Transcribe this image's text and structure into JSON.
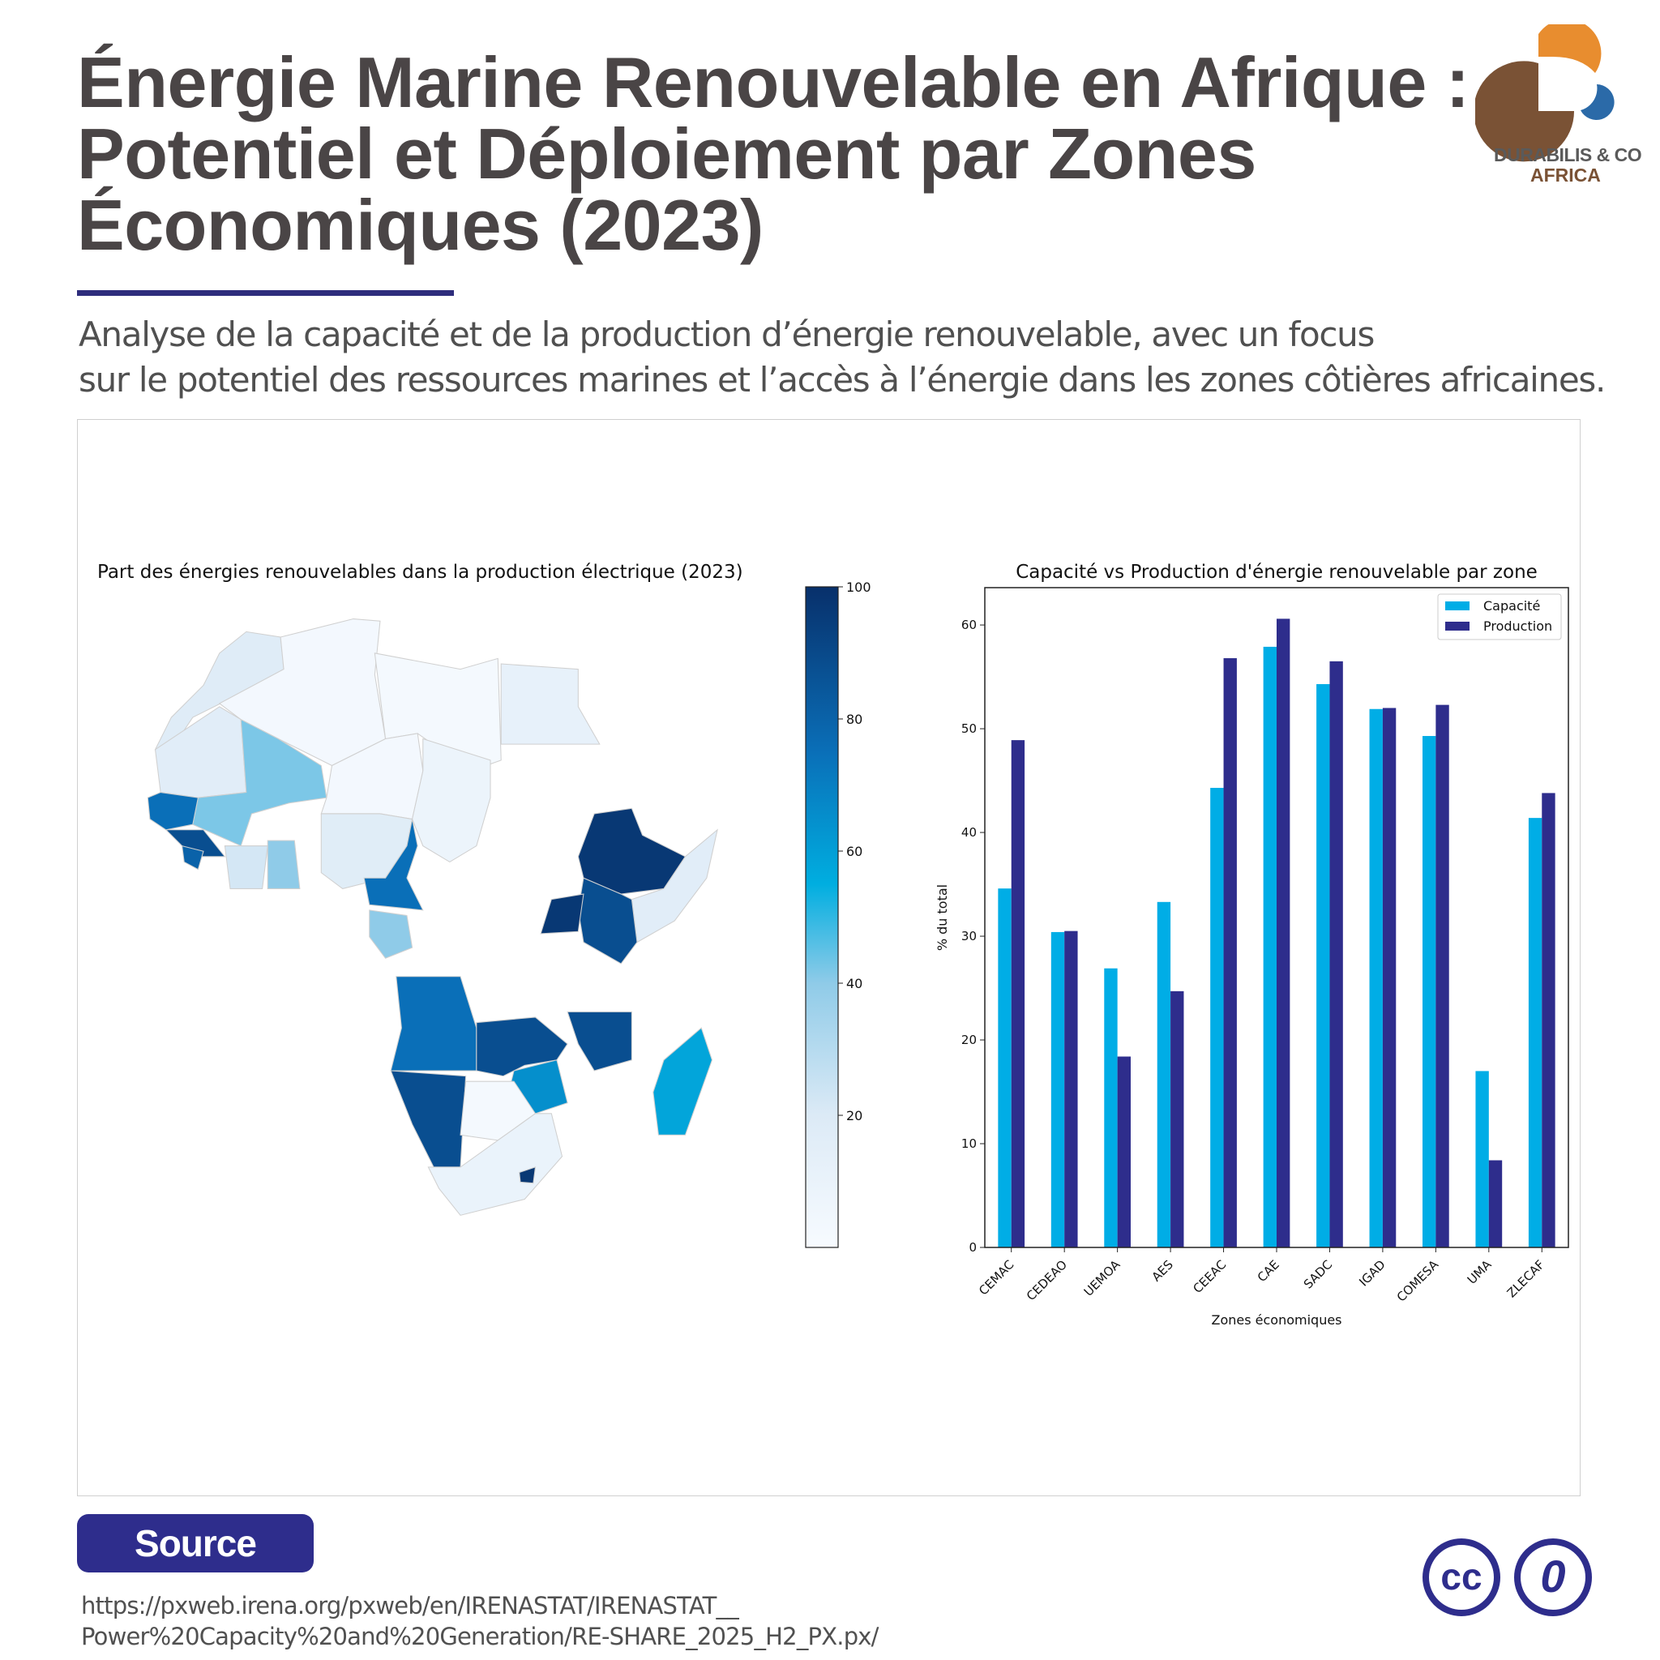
{
  "header": {
    "title_lines": [
      "Énergie Marine Renouvelable en Afrique :",
      "Potentiel et Déploiement par Zones",
      "Économiques (2023)"
    ],
    "subtitle_lines": [
      "Analyse de la capacité et de la production d’énergie renouvelable, avec un focus",
      "sur le potentiel des ressources marines et l’accès à l’énergie dans les zones côtières africaines."
    ],
    "logo_text": [
      "DURABILIS & CO",
      "AFRICA"
    ],
    "logo_colors": {
      "orange": "#e88d2f",
      "brown": "#7a5235",
      "blue": "#2b6aa8"
    }
  },
  "footer": {
    "source_label": "Source",
    "source_url_lines": [
      "https://pxweb.irena.org/pxweb/en/IRENASTAT/IRENASTAT__",
      "Power%20Capacity%20and%20Generation/RE-SHARE_2025_H2_PX.px/"
    ],
    "license_icons": [
      "cc-icon",
      "cc-zero-icon"
    ],
    "license_text": [
      "cc",
      "0"
    ]
  },
  "chart_data": [
    {
      "type": "heatmap",
      "subtype": "choropleth-map",
      "title": "Part des énergies renouvelables dans la production électrique (2023)",
      "colorbar": {
        "range": [
          0,
          100
        ],
        "ticks": [
          "20",
          "40",
          "60",
          "80",
          "100"
        ],
        "colormap": "Blues"
      },
      "values": [
        18,
        3,
        2,
        12,
        16,
        42,
        3,
        8,
        97,
        16,
        88,
        97,
        17,
        75,
        88,
        75,
        22,
        40,
        40,
        75,
        88,
        88,
        80,
        65,
        88,
        2,
        10,
        97,
        58
      ]
    },
    {
      "type": "bar",
      "title": "Capacité vs Production d'énergie renouvelable par zone",
      "xlabel": "Zones économiques",
      "ylabel": "% du total",
      "categories": [
        "CEMAC",
        "CEDEAO",
        "UEMOA",
        "AES",
        "CEEAC",
        "CAE",
        "SADC",
        "IGAD",
        "COMESA",
        "UMA",
        "ZLECAF"
      ],
      "series": [
        {
          "name": "Capacité",
          "color": "#00ade6",
          "values": [
            34.6,
            30.4,
            26.9,
            33.3,
            44.3,
            57.9,
            54.3,
            51.9,
            49.3,
            17.0,
            41.4
          ]
        },
        {
          "name": "Production",
          "color": "#2e2d8c",
          "values": [
            48.9,
            30.5,
            18.4,
            24.7,
            56.8,
            60.6,
            56.5,
            52.0,
            52.3,
            8.4,
            43.8
          ]
        }
      ],
      "ylim": [
        0,
        63.6
      ],
      "yticks": [
        "0",
        "10",
        "20",
        "30",
        "40",
        "50",
        "60"
      ],
      "legend": "top-right",
      "grid": false
    }
  ]
}
